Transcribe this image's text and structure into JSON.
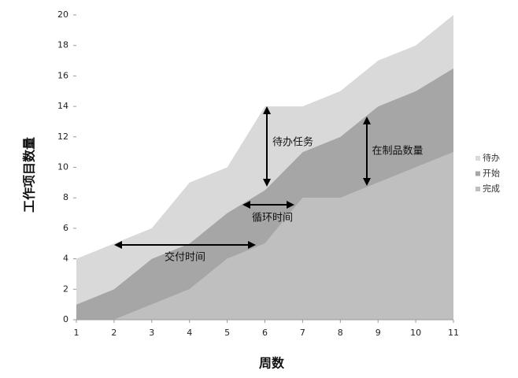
{
  "chart_data": {
    "type": "stacked-area",
    "x": [
      1,
      2,
      3,
      4,
      5,
      6,
      7,
      8,
      9,
      10,
      11
    ],
    "series": [
      {
        "name": "待办",
        "color": "#d9d9d9",
        "values": [
          3,
          3,
          2,
          4,
          3,
          5.5,
          3,
          3,
          3,
          3,
          3.5
        ]
      },
      {
        "name": "开始",
        "color": "#a6a6a6",
        "values": [
          1,
          2,
          3,
          3,
          3,
          3.5,
          3,
          4,
          5,
          5,
          5.5
        ]
      },
      {
        "name": "完成",
        "color": "#bfbfbf",
        "values": [
          0,
          0,
          1,
          2,
          4,
          5,
          8,
          8,
          9,
          10,
          11
        ]
      }
    ],
    "xlim": [
      1,
      11
    ],
    "xticks": [
      1,
      2,
      3,
      4,
      5,
      6,
      7,
      8,
      9,
      10,
      11
    ],
    "ylim": [
      0,
      20
    ],
    "yticks": [
      0,
      2,
      4,
      6,
      8,
      10,
      12,
      14,
      16,
      18,
      20
    ],
    "x_label": "周数",
    "y_label": "工作项目数量",
    "annotations": [
      "待办任务",
      "循环时间",
      "在制品数量",
      "交付时间"
    ],
    "legend": "right"
  }
}
